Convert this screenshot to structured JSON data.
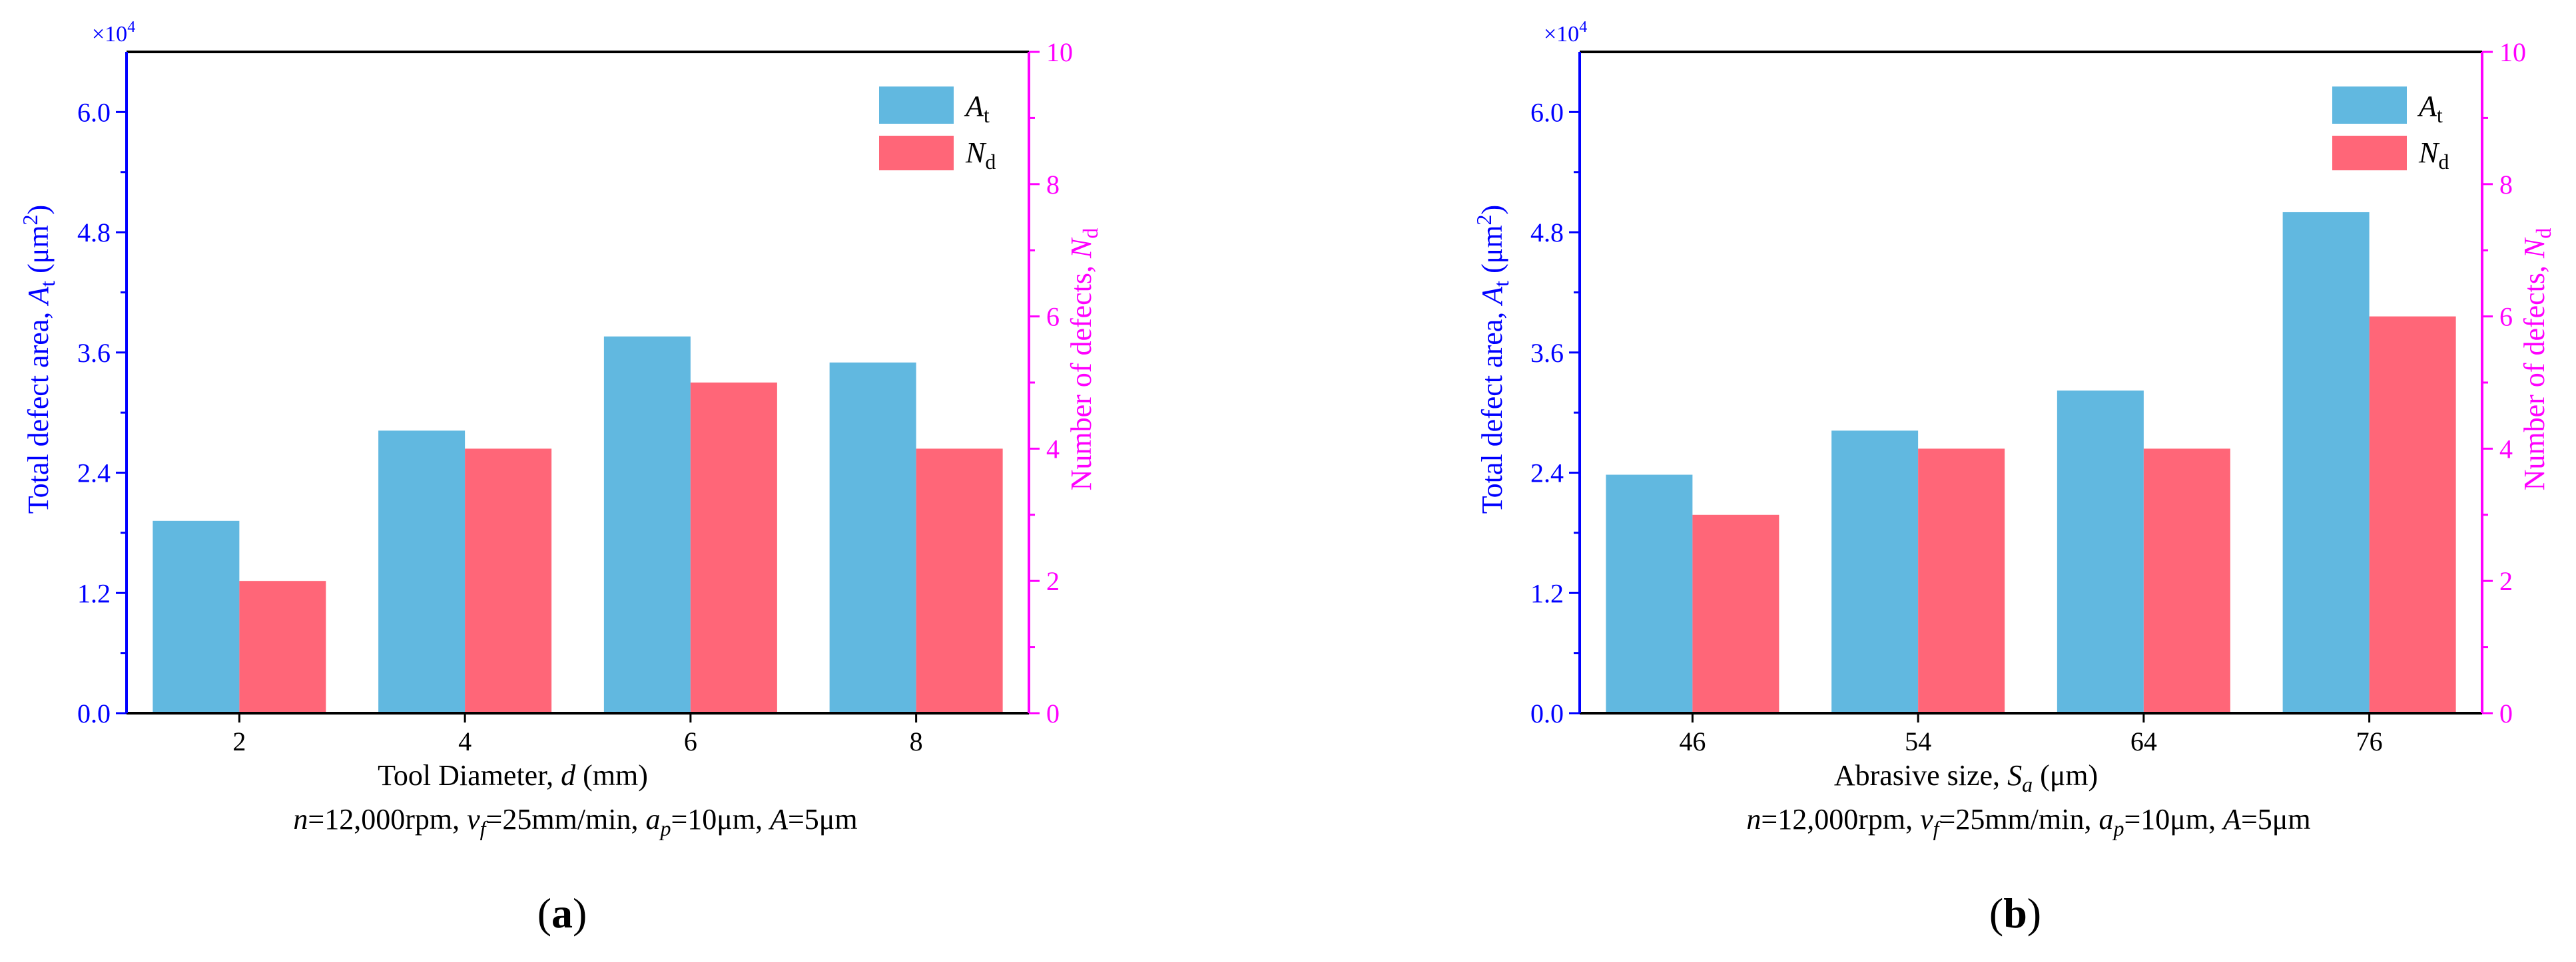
{
  "colors": {
    "At": "#61b8e0",
    "Nd": "#ff6678",
    "left_axis": "#0000ff",
    "right_axis": "#ff00ff",
    "frame": "#000000"
  },
  "chart_data": [
    {
      "panel": "a",
      "panel_label": "(a)",
      "panel_letter": "a",
      "type": "bar",
      "title": "",
      "categories": [
        "2",
        "4",
        "6",
        "8"
      ],
      "series": [
        {
          "name": "At",
          "axis": "left",
          "values": [
            19200,
            28200,
            37600,
            35000
          ]
        },
        {
          "name": "Nd",
          "axis": "right",
          "values": [
            2,
            4,
            5,
            4
          ]
        }
      ],
      "xlabel": "Tool Diameter,",
      "xlabel_var": "d",
      "xlabel_unit": "(mm)",
      "ylabel_left": "Total defect area,",
      "ylabel_left_var": "A",
      "ylabel_left_sub": "t",
      "ylabel_left_unit": "(μm",
      "ylabel_left_unit_sup": "2",
      "ylabel_left_unit_close": ")",
      "ylabel_right": "Number of defects,",
      "ylabel_right_var": "N",
      "ylabel_right_sub": "d",
      "ylim_left": [
        0,
        66000
      ],
      "ylim_right": [
        0,
        10
      ],
      "yticks_left": [
        "0.0",
        "1.2",
        "2.4",
        "3.6",
        "4.8",
        "6.0"
      ],
      "yticks_left_values": [
        0,
        12000,
        24000,
        36000,
        48000,
        60000
      ],
      "yticks_right": [
        "0",
        "2",
        "4",
        "6",
        "8",
        "10"
      ],
      "yticks_right_values": [
        0,
        2,
        4,
        6,
        8,
        10
      ],
      "scale_label": "×10",
      "scale_exp": "4",
      "legend": [
        {
          "var": "A",
          "sub": "t"
        },
        {
          "var": "N",
          "sub": "d"
        }
      ],
      "condition": {
        "n_var": "n",
        "n_val": "=12,000rpm,",
        "vf_var": "v",
        "vf_sub": "f",
        "vf_val": "=25mm/min,",
        "ap_var": "a",
        "ap_sub": "p",
        "ap_val": "=10μm,",
        "A_var": "A",
        "A_val": "=5μm"
      }
    },
    {
      "panel": "b",
      "panel_label": "(b)",
      "panel_letter": "b",
      "type": "bar",
      "title": "",
      "categories": [
        "46",
        "54",
        "64",
        "76"
      ],
      "series": [
        {
          "name": "At",
          "axis": "left",
          "values": [
            23800,
            28200,
            32200,
            50000
          ]
        },
        {
          "name": "Nd",
          "axis": "right",
          "values": [
            3,
            4,
            4,
            6
          ]
        }
      ],
      "xlabel": "Abrasive size,",
      "xlabel_var": "S",
      "xlabel_sub": "a",
      "xlabel_unit": "(μm)",
      "ylabel_left": "Total defect area,",
      "ylabel_left_var": "A",
      "ylabel_left_sub": "t",
      "ylabel_left_unit": "(μm",
      "ylabel_left_unit_sup": "2",
      "ylabel_left_unit_close": ")",
      "ylabel_right": "Number of defects,",
      "ylabel_right_var": "N",
      "ylabel_right_sub": "d",
      "ylim_left": [
        0,
        66000
      ],
      "ylim_right": [
        0,
        10
      ],
      "yticks_left": [
        "0.0",
        "1.2",
        "2.4",
        "3.6",
        "4.8",
        "6.0"
      ],
      "yticks_left_values": [
        0,
        12000,
        24000,
        36000,
        48000,
        60000
      ],
      "yticks_right": [
        "0",
        "2",
        "4",
        "6",
        "8",
        "10"
      ],
      "yticks_right_values": [
        0,
        2,
        4,
        6,
        8,
        10
      ],
      "scale_label": "×10",
      "scale_exp": "4",
      "legend": [
        {
          "var": "A",
          "sub": "t"
        },
        {
          "var": "N",
          "sub": "d"
        }
      ],
      "condition": {
        "n_var": "n",
        "n_val": "=12,000rpm,",
        "vf_var": "v",
        "vf_sub": "f",
        "vf_val": "=25mm/min,",
        "ap_var": "a",
        "ap_sub": "p",
        "ap_val": "=10μm,",
        "A_var": "A",
        "A_val": "=5μm"
      }
    }
  ]
}
